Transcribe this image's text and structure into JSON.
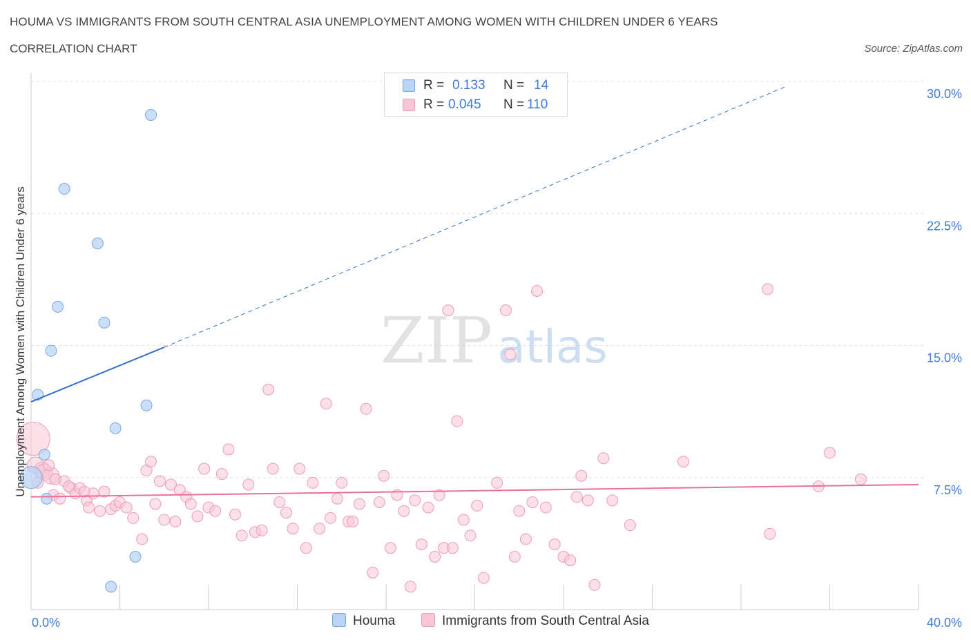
{
  "header": {
    "title": "HOUMA VS IMMIGRANTS FROM SOUTH CENTRAL ASIA UNEMPLOYMENT AMONG WOMEN WITH CHILDREN UNDER 6 YEARS",
    "subtitle": "CORRELATION CHART",
    "source": "Source: ZipAtlas.com"
  },
  "watermark": {
    "zip": "ZIP",
    "atlas": "atlas"
  },
  "legend": {
    "houma": {
      "r_label": "R =",
      "r_value": "0.133",
      "n_label": "N =",
      "n_value": "14"
    },
    "immigrants": {
      "r_label": "R =",
      "r_value": "0.045",
      "n_label": "N =",
      "n_value": "110"
    }
  },
  "colors": {
    "houma_fill": "#b9d4f5",
    "houma_stroke": "#7aa6e0",
    "houma_line": "#2f6fcc",
    "imm_fill": "#f8c6d6",
    "imm_stroke": "#ee9ab6",
    "imm_line": "#e8709a",
    "tick_text": "#3d7bd9",
    "grid": "#dddddd"
  },
  "chart_data": {
    "type": "scatter",
    "title": "HOUMA VS IMMIGRANTS FROM SOUTH CENTRAL ASIA UNEMPLOYMENT AMONG WOMEN WITH CHILDREN UNDER 6 YEARS",
    "xlabel": "",
    "ylabel": "Unemployment Among Women with Children Under 6 years",
    "xlim": [
      0,
      40
    ],
    "ylim": [
      0,
      30
    ],
    "x_tick_labels": [
      "0.0%",
      "40.0%"
    ],
    "y_ticks": [
      7.5,
      15.0,
      22.5,
      30.0
    ],
    "y_tick_labels": [
      "7.5%",
      "15.0%",
      "22.5%",
      "30.0%"
    ],
    "grid": "horizontal dashed",
    "legend_placement": "bottom",
    "series": [
      {
        "name": "Houma",
        "points": [
          [
            5.4,
            28.1
          ],
          [
            1.5,
            23.9
          ],
          [
            3.0,
            20.8
          ],
          [
            1.2,
            17.2
          ],
          [
            3.3,
            16.3
          ],
          [
            0.9,
            14.7
          ],
          [
            0.3,
            12.2
          ],
          [
            5.2,
            11.6
          ],
          [
            3.8,
            10.3
          ],
          [
            0.6,
            8.8
          ],
          [
            0.0,
            7.5
          ],
          [
            0.7,
            6.3
          ],
          [
            4.7,
            3.0
          ],
          [
            3.6,
            1.3
          ]
        ],
        "trend": {
          "x": [
            0,
            6
          ],
          "y": [
            11.8,
            14.9
          ],
          "extension_x": [
            6,
            34
          ],
          "extension_y": [
            14.9,
            29.7
          ]
        }
      },
      {
        "name": "Immigrants from South Central Asia",
        "points": [
          [
            0.1,
            9.7
          ],
          [
            0.2,
            8.2
          ],
          [
            0.5,
            7.9
          ],
          [
            0.6,
            7.8
          ],
          [
            0.9,
            7.6
          ],
          [
            1.0,
            6.5
          ],
          [
            1.3,
            6.3
          ],
          [
            1.5,
            7.3
          ],
          [
            1.8,
            6.9
          ],
          [
            2.0,
            6.6
          ],
          [
            2.2,
            6.9
          ],
          [
            2.5,
            6.2
          ],
          [
            2.6,
            5.8
          ],
          [
            2.8,
            6.6
          ],
          [
            3.1,
            5.6
          ],
          [
            3.3,
            6.7
          ],
          [
            3.6,
            5.7
          ],
          [
            3.8,
            5.9
          ],
          [
            4.0,
            6.1
          ],
          [
            4.3,
            5.8
          ],
          [
            4.6,
            5.2
          ],
          [
            5.0,
            4.0
          ],
          [
            5.2,
            7.9
          ],
          [
            5.4,
            8.4
          ],
          [
            5.6,
            6.0
          ],
          [
            5.8,
            7.3
          ],
          [
            6.0,
            5.1
          ],
          [
            6.3,
            7.1
          ],
          [
            6.5,
            5.0
          ],
          [
            6.7,
            6.8
          ],
          [
            7.0,
            6.4
          ],
          [
            7.2,
            6.0
          ],
          [
            7.5,
            5.3
          ],
          [
            7.8,
            8.0
          ],
          [
            8.0,
            5.8
          ],
          [
            8.3,
            5.6
          ],
          [
            8.6,
            7.7
          ],
          [
            8.9,
            9.1
          ],
          [
            9.2,
            5.4
          ],
          [
            9.5,
            4.2
          ],
          [
            9.8,
            7.1
          ],
          [
            10.1,
            4.4
          ],
          [
            10.4,
            4.5
          ],
          [
            10.7,
            12.5
          ],
          [
            10.9,
            8.0
          ],
          [
            11.2,
            6.1
          ],
          [
            11.5,
            5.5
          ],
          [
            11.8,
            4.6
          ],
          [
            12.1,
            8.0
          ],
          [
            12.4,
            3.5
          ],
          [
            12.7,
            7.2
          ],
          [
            13.0,
            4.6
          ],
          [
            13.3,
            11.7
          ],
          [
            13.5,
            5.2
          ],
          [
            13.8,
            6.3
          ],
          [
            14.0,
            7.2
          ],
          [
            14.3,
            5.0
          ],
          [
            14.5,
            5.0
          ],
          [
            14.8,
            6.0
          ],
          [
            15.1,
            11.4
          ],
          [
            15.4,
            2.1
          ],
          [
            15.7,
            6.1
          ],
          [
            15.9,
            7.6
          ],
          [
            16.2,
            3.5
          ],
          [
            16.5,
            6.5
          ],
          [
            16.8,
            5.6
          ],
          [
            17.1,
            1.3
          ],
          [
            17.3,
            6.2
          ],
          [
            17.6,
            3.7
          ],
          [
            17.9,
            5.8
          ],
          [
            18.2,
            3.0
          ],
          [
            18.4,
            6.5
          ],
          [
            18.6,
            3.5
          ],
          [
            18.8,
            17.0
          ],
          [
            19.0,
            3.5
          ],
          [
            19.2,
            10.7
          ],
          [
            19.5,
            5.1
          ],
          [
            19.8,
            4.2
          ],
          [
            20.1,
            5.9
          ],
          [
            20.4,
            1.8
          ],
          [
            21.0,
            7.2
          ],
          [
            21.4,
            17.0
          ],
          [
            21.6,
            14.5
          ],
          [
            21.8,
            3.0
          ],
          [
            22.0,
            5.6
          ],
          [
            22.3,
            4.0
          ],
          [
            22.6,
            6.1
          ],
          [
            22.8,
            18.1
          ],
          [
            23.2,
            5.8
          ],
          [
            23.6,
            3.7
          ],
          [
            24.0,
            3.0
          ],
          [
            24.3,
            2.8
          ],
          [
            24.6,
            6.4
          ],
          [
            24.8,
            7.6
          ],
          [
            25.1,
            6.2
          ],
          [
            25.4,
            1.4
          ],
          [
            25.8,
            8.6
          ],
          [
            26.2,
            6.2
          ],
          [
            27.0,
            4.8
          ],
          [
            29.4,
            8.4
          ],
          [
            33.2,
            18.2
          ],
          [
            33.3,
            4.3
          ],
          [
            35.5,
            7.0
          ],
          [
            36.0,
            8.9
          ],
          [
            37.4,
            7.4
          ],
          [
            0.3,
            7.2
          ],
          [
            0.8,
            8.2
          ],
          [
            1.7,
            7.0
          ],
          [
            2.4,
            6.7
          ],
          [
            1.1,
            7.4
          ]
        ],
        "trend": {
          "x": [
            0,
            40
          ],
          "y": [
            6.4,
            7.1
          ]
        }
      }
    ]
  }
}
